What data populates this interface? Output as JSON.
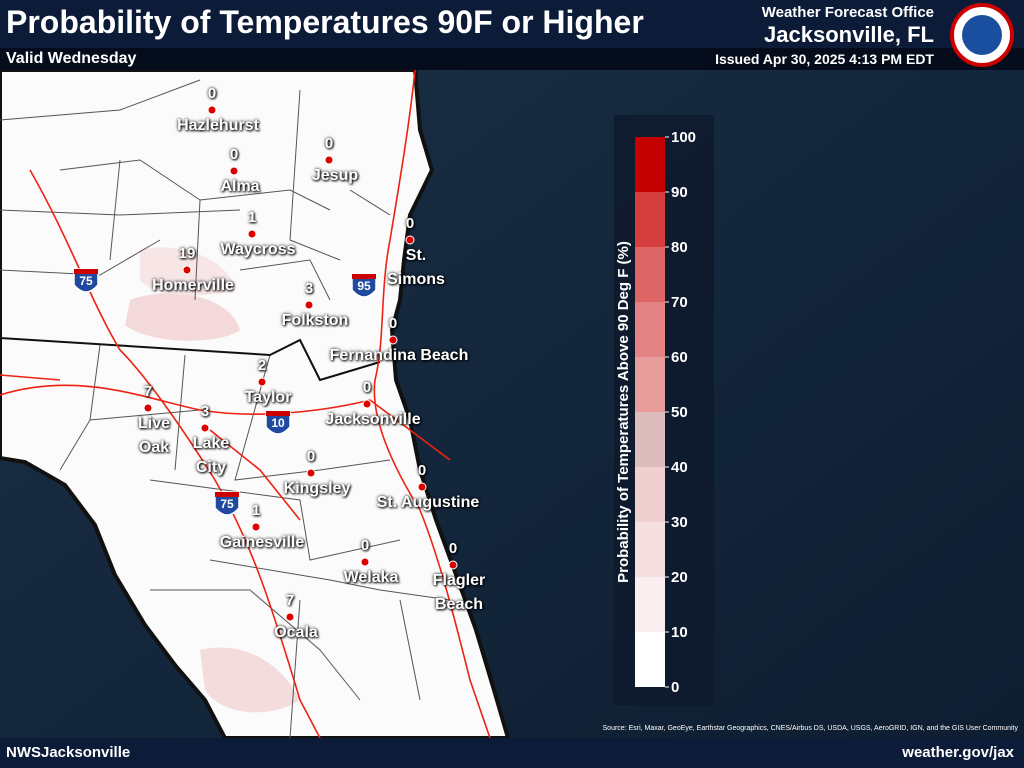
{
  "header": {
    "title": "Probability of Temperatures 90F or Higher",
    "subtitle": "Valid Wednesday",
    "office": "Weather Forecast Office",
    "location": "Jacksonville, FL",
    "issued": "Issued Apr 30, 2025 4:13 PM EDT"
  },
  "cities": [
    {
      "name": "Hazlehurst",
      "value": 0
    },
    {
      "name": "Alma",
      "value": 0
    },
    {
      "name": "Jesup",
      "value": 0
    },
    {
      "name": "Waycross",
      "value": 1
    },
    {
      "name": "Homerville",
      "value": 19
    },
    {
      "name": "St. Simons",
      "value": 0
    },
    {
      "name": "Folkston",
      "value": 3
    },
    {
      "name": "Fernandina Beach",
      "value": 0
    },
    {
      "name": "Taylor",
      "value": 2
    },
    {
      "name": "Jacksonville",
      "value": 0
    },
    {
      "name": "Live Oak",
      "value": 7
    },
    {
      "name": "Lake City",
      "value": 3
    },
    {
      "name": "Kingsley",
      "value": 0
    },
    {
      "name": "St. Augustine",
      "value": 0
    },
    {
      "name": "Gainesville",
      "value": 1
    },
    {
      "name": "Welaka",
      "value": 0
    },
    {
      "name": "Flagler Beach",
      "value": 0
    },
    {
      "name": "Ocala",
      "value": 7
    }
  ],
  "shields": [
    "75",
    "95",
    "10",
    "75"
  ],
  "legend": {
    "title": "Probability of Temperatures Above 90 Deg F (%)",
    "ticks": [
      0,
      10,
      20,
      30,
      40,
      50,
      60,
      70,
      80,
      90,
      100
    ],
    "colors": [
      "#ffffff",
      "#fbeef0",
      "#f6dfe0",
      "#f0cfd0",
      "#dcbcbd",
      "#e89c9c",
      "#e38383",
      "#de6565",
      "#d43e3e",
      "#c40000"
    ]
  },
  "source": "Source: Esri, Maxar, GeoEye, Earthstar Geographics, CNES/Airbus DS, USDA, USGS, AeroGRID, IGN, and the GIS User Community",
  "footer": {
    "left": "NWSJacksonville",
    "right": "weather.gov/jax"
  }
}
